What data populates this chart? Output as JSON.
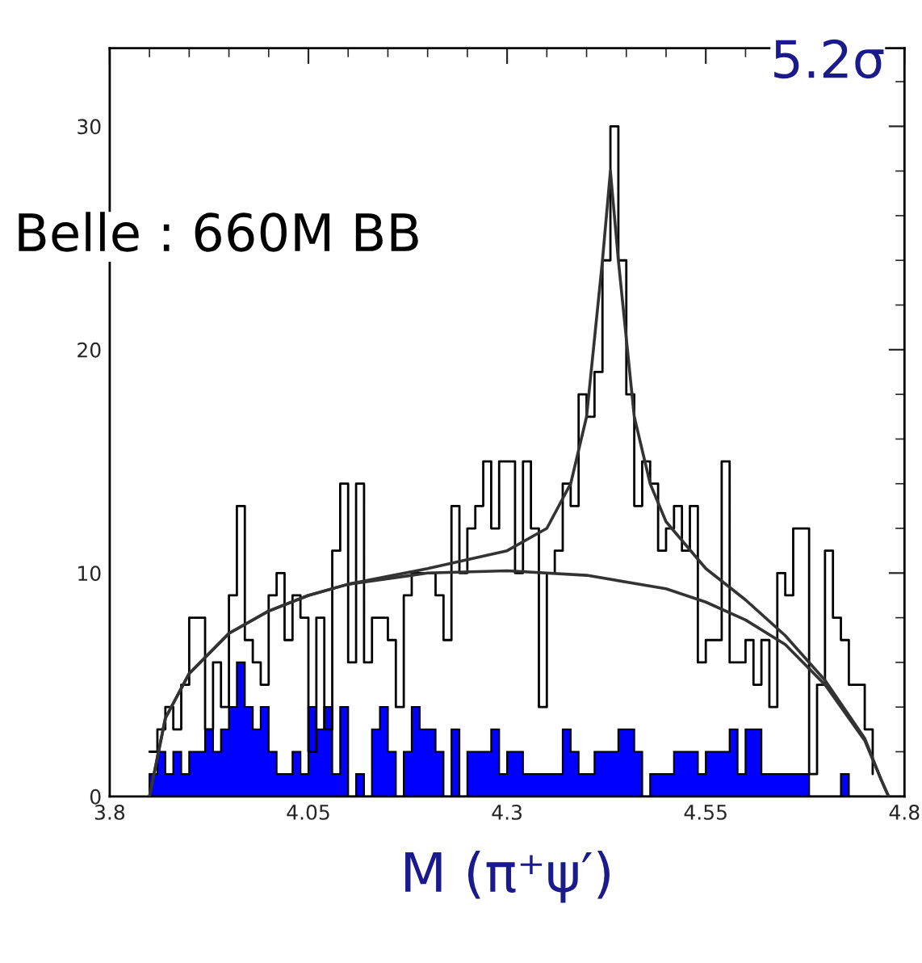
{
  "chart_data": {
    "type": "histogram",
    "xlabel": "M (π⁺ψ′)",
    "annotations": [
      "Belle : 660M BB",
      "5.2σ"
    ],
    "bins": [
      3.85,
      3.86,
      3.87,
      3.88,
      3.89,
      3.9,
      3.91,
      3.92,
      3.93,
      3.94,
      3.95,
      3.96,
      3.97,
      3.98,
      3.99,
      4.0,
      4.01,
      4.02,
      4.03,
      4.04,
      4.05,
      4.06,
      4.07,
      4.08,
      4.09,
      4.1,
      4.11,
      4.12,
      4.13,
      4.14,
      4.15,
      4.16,
      4.17,
      4.18,
      4.19,
      4.2,
      4.21,
      4.22,
      4.23,
      4.24,
      4.25,
      4.26,
      4.27,
      4.28,
      4.29,
      4.3,
      4.31,
      4.32,
      4.33,
      4.34,
      4.35,
      4.36,
      4.37,
      4.38,
      4.39,
      4.4,
      4.41,
      4.42,
      4.43,
      4.44,
      4.45,
      4.46,
      4.47,
      4.48,
      4.49,
      4.5,
      4.51,
      4.52,
      4.53,
      4.54,
      4.55,
      4.56,
      4.57,
      4.58,
      4.59,
      4.6,
      4.61,
      4.62,
      4.63,
      4.64,
      4.65,
      4.66,
      4.67,
      4.68,
      4.69,
      4.7,
      4.71,
      4.72,
      4.73,
      4.74,
      4.75,
      4.76,
      4.77
    ],
    "series": [
      {
        "type": "step",
        "color": "#000000",
        "x": [
          3.85,
          3.86,
          3.87,
          3.88,
          3.89,
          3.9,
          3.91,
          3.92,
          3.93,
          3.94,
          3.95,
          3.96,
          3.97,
          3.98,
          3.99,
          4.0,
          4.01,
          4.02,
          4.03,
          4.04,
          4.05,
          4.06,
          4.07,
          4.08,
          4.09,
          4.1,
          4.11,
          4.12,
          4.13,
          4.14,
          4.15,
          4.16,
          4.17,
          4.18,
          4.19,
          4.2,
          4.21,
          4.22,
          4.23,
          4.24,
          4.25,
          4.26,
          4.27,
          4.28,
          4.29,
          4.3,
          4.31,
          4.32,
          4.33,
          4.34,
          4.35,
          4.36,
          4.37,
          4.38,
          4.39,
          4.4,
          4.41,
          4.42,
          4.43,
          4.44,
          4.45,
          4.46,
          4.47,
          4.48,
          4.49,
          4.5,
          4.51,
          4.52,
          4.53,
          4.54,
          4.55,
          4.56,
          4.57,
          4.58,
          4.59,
          4.6,
          4.61,
          4.62,
          4.63,
          4.64,
          4.65,
          4.66,
          4.67,
          4.68,
          4.69,
          4.7,
          4.71,
          4.72,
          4.73,
          4.74,
          4.75,
          4.76
        ],
        "values": [
          2,
          3,
          4,
          3,
          5,
          8,
          8,
          3,
          6,
          4,
          9,
          13,
          7,
          6,
          5,
          9,
          10,
          7,
          9,
          8,
          2,
          8,
          3,
          11,
          14,
          6,
          14,
          6,
          8,
          8,
          7,
          4,
          9,
          10,
          10,
          10,
          9,
          7,
          13,
          10,
          12,
          13,
          15,
          12,
          15,
          15,
          10,
          15,
          12,
          4,
          10,
          11,
          14,
          13,
          18,
          17,
          19,
          24,
          30,
          24,
          18,
          13,
          15,
          14,
          11,
          12,
          13,
          11,
          13,
          6,
          7,
          7,
          15,
          6,
          6,
          7,
          5,
          7,
          4,
          10,
          9,
          12,
          12,
          1,
          5,
          11,
          8,
          7,
          5,
          5,
          3,
          1
        ]
      },
      {
        "color": "#0000ff",
        "values": [
          1,
          2,
          1,
          2,
          1,
          2,
          2,
          3,
          2,
          3,
          4,
          6,
          4,
          3,
          4,
          2,
          1,
          1,
          2,
          1,
          4,
          3,
          4,
          1,
          4,
          0,
          1,
          0,
          3,
          4,
          2,
          0,
          2,
          4,
          3,
          3,
          2,
          0,
          3,
          0,
          2,
          2,
          2,
          3,
          1,
          2,
          2,
          1,
          1,
          1,
          1,
          1,
          3,
          2,
          1,
          1,
          2,
          2,
          2,
          3,
          3,
          2,
          0,
          1,
          1,
          1,
          2,
          2,
          2,
          1,
          2,
          2,
          2,
          3,
          1,
          3,
          3,
          1,
          1,
          1,
          1,
          1,
          1,
          0,
          0,
          0,
          0,
          1,
          0,
          0,
          0,
          0
        ]
      },
      {
        "type": "line",
        "color": "#333333",
        "x": [
          3.85,
          3.87,
          3.9,
          3.95,
          4.0,
          4.05,
          4.1,
          4.2,
          4.3,
          4.4,
          4.5,
          4.55,
          4.6,
          4.65,
          4.7,
          4.75,
          4.77,
          4.78
        ],
        "values": [
          0,
          3.5,
          5.5,
          7.3,
          8.3,
          9.0,
          9.5,
          10.0,
          10.1,
          9.9,
          9.3,
          8.7,
          7.9,
          6.8,
          5.0,
          2.5,
          0.8,
          0
        ]
      },
      {
        "type": "line",
        "color": "#333333",
        "x": [
          3.85,
          3.87,
          3.9,
          3.95,
          4.0,
          4.05,
          4.1,
          4.2,
          4.3,
          4.35,
          4.38,
          4.4,
          4.42,
          4.43,
          4.44,
          4.46,
          4.48,
          4.5,
          4.55,
          4.6,
          4.65,
          4.7,
          4.75,
          4.77,
          4.78
        ],
        "values": [
          0,
          3.5,
          5.5,
          7.3,
          8.3,
          9.0,
          9.5,
          10.2,
          11,
          12,
          14,
          17,
          24,
          28,
          24,
          17,
          14,
          12.3,
          10.2,
          8.8,
          7.2,
          5.2,
          2.6,
          0.8,
          0
        ]
      }
    ],
    "xlim": [
      3.8,
      4.8
    ],
    "xticks": [
      3.8,
      4.05,
      4.3,
      4.55,
      4.8
    ],
    "ylim": [
      0,
      33.5
    ],
    "yticks": [
      0,
      10,
      20,
      30
    ],
    "grid": false,
    "legend": false
  }
}
